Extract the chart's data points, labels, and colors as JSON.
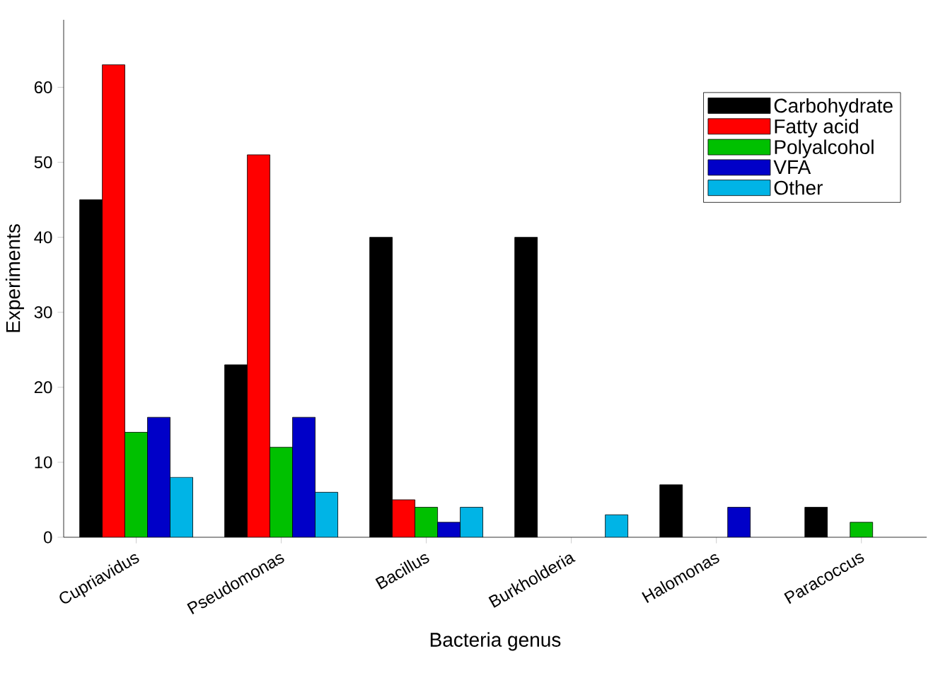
{
  "chart_data": {
    "type": "bar",
    "xlabel": "Bacteria genus",
    "ylabel": "Experiments",
    "categories": [
      "Cupriavidus",
      "Pseudomonas",
      "Bacillus",
      "Burkholderia",
      "Halomonas",
      "Paracoccus"
    ],
    "series": [
      {
        "name": "Carbohydrate",
        "color": "#000000",
        "values": [
          45,
          23,
          40,
          40,
          7,
          4
        ]
      },
      {
        "name": "Fatty acid",
        "color": "#ff0000",
        "values": [
          63,
          51,
          5,
          null,
          null,
          null
        ]
      },
      {
        "name": "Polyalcohol",
        "color": "#00c000",
        "values": [
          14,
          12,
          4,
          null,
          null,
          2
        ]
      },
      {
        "name": "VFA",
        "color": "#0000c8",
        "values": [
          16,
          16,
          2,
          null,
          4,
          null
        ]
      },
      {
        "name": "Other",
        "color": "#00b4e6",
        "values": [
          8,
          6,
          4,
          3,
          null,
          null
        ]
      }
    ],
    "ylim": [
      0,
      69
    ],
    "yticks": [
      0,
      10,
      20,
      30,
      40,
      50,
      60
    ],
    "legend": "top right",
    "grid": false
  }
}
